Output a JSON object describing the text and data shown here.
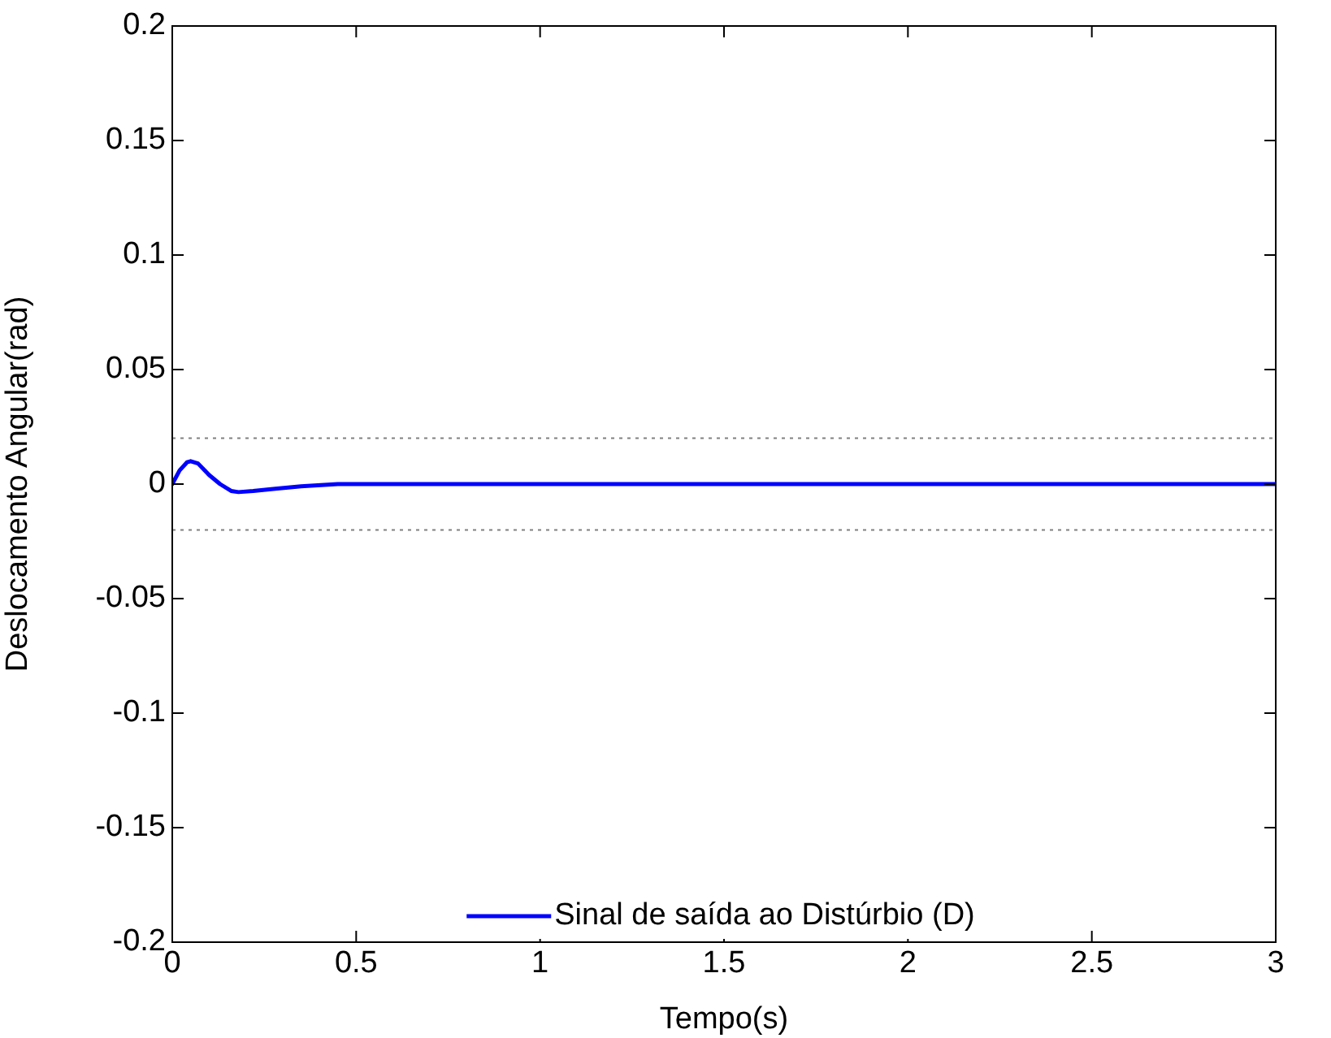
{
  "chart_data": {
    "type": "line",
    "xlabel": "Tempo(s)",
    "ylabel": "Deslocamento Angular(rad)",
    "xlim": [
      0,
      3
    ],
    "xticks": [
      0,
      0.5,
      1,
      1.5,
      2,
      2.5,
      3
    ],
    "ylim": [
      -0.2,
      0.2
    ],
    "yticks": [
      -0.2,
      -0.15,
      -0.1,
      -0.05,
      0,
      0.05,
      0.1,
      0.15,
      0.2
    ],
    "series": [
      {
        "name": "Sinal de saída ao Distúrbio (D)",
        "color": "#0000ff",
        "x": [
          0,
          0.02,
          0.04,
          0.05,
          0.07,
          0.1,
          0.13,
          0.16,
          0.18,
          0.22,
          0.28,
          0.35,
          0.45,
          0.5,
          1,
          2,
          3
        ],
        "values": [
          0,
          0.006,
          0.0095,
          0.01,
          0.009,
          0.004,
          0,
          -0.003,
          -0.0035,
          -0.003,
          -0.002,
          -0.001,
          0,
          0,
          0,
          0,
          0
        ]
      }
    ],
    "ref_lines": [
      {
        "axis": "y",
        "value": 0.02,
        "color": "#808080",
        "line_style": "dotted"
      },
      {
        "axis": "y",
        "value": -0.02,
        "color": "#808080",
        "line_style": "dotted"
      }
    ],
    "grid": false,
    "legend": "bottom",
    "marker": "none",
    "line_style": "solid"
  }
}
